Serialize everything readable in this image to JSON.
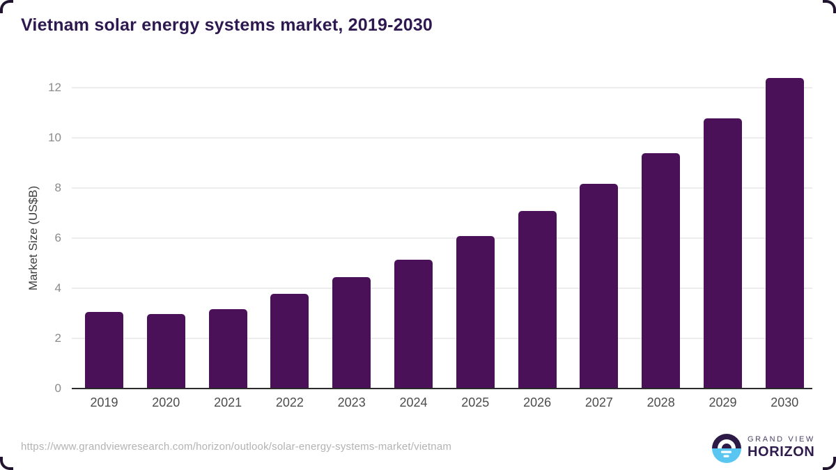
{
  "title": "Vietnam solar energy systems market, 2019-2030",
  "chart_data": {
    "type": "bar",
    "title": "Vietnam solar energy systems market, 2019-2030",
    "categories": [
      "2019",
      "2020",
      "2021",
      "2022",
      "2023",
      "2024",
      "2025",
      "2026",
      "2027",
      "2028",
      "2029",
      "2030"
    ],
    "values": [
      3.06,
      2.96,
      3.16,
      3.77,
      4.44,
      5.15,
      6.07,
      7.08,
      8.18,
      9.4,
      10.78,
      12.38
    ],
    "xlabel": "",
    "ylabel": "Market Size (US$B)",
    "ylim": [
      0,
      12.5
    ],
    "yticks": [
      0,
      2,
      4,
      6,
      8,
      10,
      12
    ],
    "grid": true,
    "legend": "none",
    "bar_color": "#4a1158",
    "axis_color": "#2b2b2b",
    "gridline_color": "#ededed",
    "ytick_color": "#8a8a8a",
    "xtick_color": "#4c4c4c",
    "title_color": "#2e1850"
  },
  "footer": {
    "source_url": "https://www.grandviewresearch.com/horizon/outlook/solar-energy-systems-market/vietnam",
    "logo": {
      "line1": "GRAND VIEW",
      "line2": "HORIZON",
      "icon": "horizon-sun-icon",
      "dark_color": "#2e1a47",
      "blue_color": "#59c6f2"
    }
  }
}
